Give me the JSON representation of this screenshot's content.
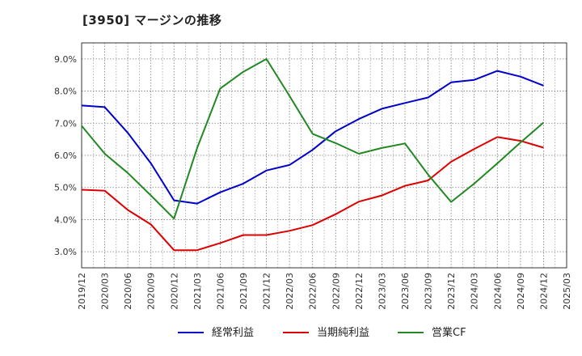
{
  "chart_data": {
    "type": "line",
    "title": "[3950]  マージンの推移",
    "x": [
      "2019/12",
      "2020/03",
      "2020/06",
      "2020/09",
      "2020/12",
      "2021/03",
      "2021/06",
      "2021/09",
      "2021/12",
      "2022/03",
      "2022/06",
      "2022/09",
      "2022/12",
      "2023/03",
      "2023/06",
      "2023/09",
      "2023/12",
      "2024/03",
      "2024/06",
      "2024/09",
      "2024/12",
      "2025/03"
    ],
    "yticks": [
      "3.0%",
      "4.0%",
      "5.0%",
      "6.0%",
      "7.0%",
      "8.0%",
      "9.0%"
    ],
    "ylim": [
      2.5,
      9.5
    ],
    "grid": true,
    "legend_position": "bottom",
    "series": [
      {
        "name": "経常利益",
        "color": "#0000cc",
        "values": [
          7.55,
          7.5,
          6.7,
          5.75,
          4.6,
          4.5,
          4.85,
          5.12,
          5.53,
          5.7,
          6.17,
          6.75,
          7.13,
          7.45,
          7.63,
          7.8,
          8.27,
          8.35,
          8.63,
          8.45,
          8.17,
          null
        ]
      },
      {
        "name": "当期純利益",
        "color": "#dd0000",
        "values": [
          4.93,
          4.9,
          4.3,
          3.85,
          3.05,
          3.05,
          3.27,
          3.52,
          3.52,
          3.65,
          3.83,
          4.17,
          4.56,
          4.75,
          5.05,
          5.22,
          5.8,
          6.2,
          6.57,
          6.45,
          6.24,
          null
        ]
      },
      {
        "name": "営業CF",
        "color": "#228822",
        "values": [
          6.92,
          6.05,
          5.45,
          4.75,
          4.03,
          6.23,
          8.08,
          8.6,
          9.0,
          7.85,
          6.67,
          6.38,
          6.05,
          6.23,
          6.37,
          5.4,
          4.55,
          5.12,
          5.75,
          6.4,
          7.02,
          null
        ]
      }
    ]
  }
}
